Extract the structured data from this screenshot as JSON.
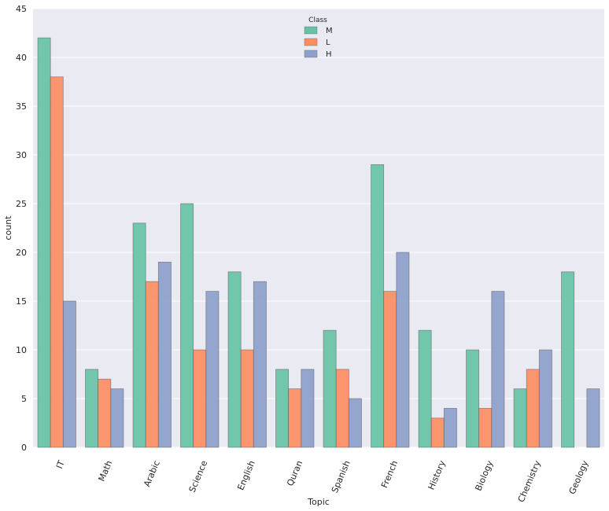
{
  "chart_data": {
    "type": "bar",
    "xlabel": "Topic",
    "ylabel": "count",
    "ylim": [
      0,
      45
    ],
    "yticks": [
      0,
      5,
      10,
      15,
      20,
      25,
      30,
      35,
      40,
      45
    ],
    "grid": true,
    "legend": {
      "title": "Class",
      "placement": "top-center"
    },
    "categories": [
      "IT",
      "Math",
      "Arabic",
      "Science",
      "English",
      "Quran",
      "Spanish",
      "French",
      "History",
      "Biology",
      "Chemistry",
      "Geology"
    ],
    "series": [
      {
        "name": "M",
        "color": "#66c2a5",
        "values": [
          42,
          8,
          23,
          25,
          18,
          8,
          12,
          29,
          12,
          10,
          6,
          18
        ]
      },
      {
        "name": "L",
        "color": "#fc8d62",
        "values": [
          38,
          7,
          17,
          10,
          10,
          6,
          8,
          16,
          3,
          4,
          8,
          0
        ]
      },
      {
        "name": "H",
        "color": "#8da0cb",
        "values": [
          15,
          6,
          19,
          16,
          17,
          8,
          5,
          20,
          4,
          16,
          10,
          6
        ]
      }
    ]
  }
}
